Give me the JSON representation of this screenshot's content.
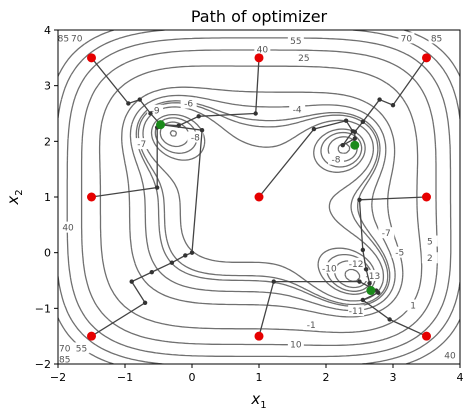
{
  "chart_data": {
    "type": "contour",
    "title": "Path of optimizer",
    "xlabel": "x",
    "xlabel_sub": "1",
    "ylabel": "x",
    "ylabel_sub": "2",
    "xlim": [
      -2,
      4
    ],
    "ylim": [
      -2,
      4
    ],
    "xticks": [
      -2,
      -1,
      0,
      1,
      2,
      3,
      4
    ],
    "yticks": [
      -2,
      -1,
      0,
      1,
      2,
      3,
      4
    ],
    "grid": false,
    "contour_labels": [
      {
        "text": "85",
        "x": -1.92,
        "y": 3.85
      },
      {
        "text": "70",
        "x": -1.72,
        "y": 3.85
      },
      {
        "text": "55",
        "x": 1.55,
        "y": 3.8
      },
      {
        "text": "40",
        "x": 1.05,
        "y": 3.65
      },
      {
        "text": "25",
        "x": 1.67,
        "y": 3.5
      },
      {
        "text": "70",
        "x": 3.2,
        "y": 3.85
      },
      {
        "text": "85",
        "x": 3.65,
        "y": 3.85
      },
      {
        "text": "-6",
        "x": -0.05,
        "y": 2.68
      },
      {
        "text": "-9",
        "x": -0.55,
        "y": 2.55
      },
      {
        "text": "-7",
        "x": -0.75,
        "y": 1.95
      },
      {
        "text": "-8",
        "x": 0.05,
        "y": 2.07
      },
      {
        "text": "-4",
        "x": 1.57,
        "y": 2.57
      },
      {
        "text": "-8",
        "x": 2.15,
        "y": 1.67
      },
      {
        "text": "40",
        "x": -1.85,
        "y": 0.45
      },
      {
        "text": "-10",
        "x": 2.05,
        "y": -0.28
      },
      {
        "text": "-12",
        "x": 2.45,
        "y": -0.2
      },
      {
        "text": "-13",
        "x": 2.7,
        "y": -0.42
      },
      {
        "text": "-11",
        "x": 2.45,
        "y": -1.05
      },
      {
        "text": "-7",
        "x": 2.9,
        "y": 0.35
      },
      {
        "text": "-5",
        "x": 3.1,
        "y": 0.0
      },
      {
        "text": "-1",
        "x": 1.78,
        "y": -1.3
      },
      {
        "text": "10",
        "x": 1.55,
        "y": -1.65
      },
      {
        "text": "5",
        "x": 3.55,
        "y": 0.2
      },
      {
        "text": "2",
        "x": 3.55,
        "y": -0.1
      },
      {
        "text": "1",
        "x": 3.3,
        "y": -0.95
      },
      {
        "text": "70",
        "x": -1.9,
        "y": -1.72
      },
      {
        "text": "55",
        "x": -1.65,
        "y": -1.72
      },
      {
        "text": "85",
        "x": -1.9,
        "y": -1.92
      },
      {
        "text": "40",
        "x": 3.85,
        "y": -1.85
      }
    ],
    "start_points": [
      {
        "x": -1.5,
        "y": 3.5
      },
      {
        "x": 1.0,
        "y": 3.5
      },
      {
        "x": 3.5,
        "y": 3.5
      },
      {
        "x": -1.5,
        "y": 1.0
      },
      {
        "x": 1.0,
        "y": 1.0
      },
      {
        "x": 3.5,
        "y": 1.0
      },
      {
        "x": -1.5,
        "y": -1.5
      },
      {
        "x": 1.0,
        "y": -1.5
      },
      {
        "x": 3.5,
        "y": -1.5
      }
    ],
    "minima": [
      {
        "x": -0.47,
        "y": 2.3
      },
      {
        "x": 2.43,
        "y": 1.93
      },
      {
        "x": 2.67,
        "y": -0.68
      }
    ],
    "paths": [
      [
        [
          -1.5,
          3.5
        ],
        [
          -0.95,
          2.68
        ],
        [
          -0.78,
          2.75
        ],
        [
          -0.62,
          2.5
        ],
        [
          -0.47,
          2.3
        ]
      ],
      [
        [
          1.0,
          3.5
        ],
        [
          0.95,
          2.5
        ],
        [
          0.1,
          2.45
        ],
        [
          -0.2,
          2.28
        ],
        [
          -0.47,
          2.3
        ]
      ],
      [
        [
          3.5,
          3.5
        ],
        [
          3.0,
          2.65
        ],
        [
          2.8,
          2.75
        ],
        [
          2.55,
          2.35
        ],
        [
          2.43,
          2.17
        ],
        [
          2.43,
          1.93
        ]
      ],
      [
        [
          -1.5,
          1.0
        ],
        [
          -0.52,
          1.17
        ],
        [
          -0.52,
          2.25
        ],
        [
          -0.47,
          2.3
        ]
      ],
      [
        [
          1.0,
          1.0
        ],
        [
          1.82,
          2.22
        ],
        [
          2.3,
          2.37
        ],
        [
          2.4,
          2.18
        ],
        [
          2.25,
          1.93
        ],
        [
          2.43,
          2.05
        ],
        [
          2.43,
          1.93
        ]
      ],
      [
        [
          3.5,
          1.0
        ],
        [
          2.5,
          0.95
        ],
        [
          2.55,
          0.05
        ],
        [
          2.6,
          -0.3
        ],
        [
          2.65,
          -0.55
        ],
        [
          2.67,
          -0.68
        ]
      ],
      [
        [
          -1.5,
          -1.5
        ],
        [
          -0.7,
          -0.9
        ],
        [
          -0.9,
          -0.52
        ],
        [
          -0.6,
          -0.35
        ],
        [
          -0.3,
          -0.18
        ],
        [
          -0.1,
          -0.05
        ],
        [
          0.0,
          0.0
        ],
        [
          0.15,
          2.2
        ],
        [
          -0.47,
          2.3
        ]
      ],
      [
        [
          1.0,
          -1.5
        ],
        [
          1.22,
          -0.52
        ],
        [
          2.5,
          -0.52
        ],
        [
          2.75,
          -0.68
        ],
        [
          2.67,
          -0.68
        ]
      ],
      [
        [
          3.5,
          -1.5
        ],
        [
          2.95,
          -1.2
        ],
        [
          2.55,
          -0.85
        ],
        [
          2.78,
          -0.72
        ],
        [
          2.67,
          -0.68
        ]
      ]
    ]
  }
}
